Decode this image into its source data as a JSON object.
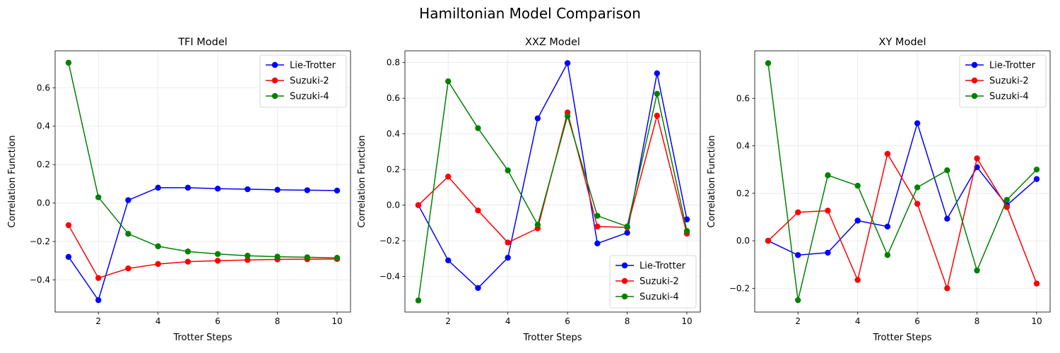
{
  "figure": {
    "suptitle": "Hamiltonian Model Comparison"
  },
  "chart_data": [
    {
      "type": "line",
      "title": "TFI Model",
      "xlabel": "Trotter Steps",
      "ylabel": "Correlation Function",
      "x": [
        1,
        2,
        3,
        4,
        5,
        6,
        7,
        8,
        9,
        10
      ],
      "xlim": [
        0.55,
        10.45
      ],
      "ylim": [
        -0.567,
        0.792
      ],
      "xticks": [
        2,
        4,
        6,
        8,
        10
      ],
      "yticks": [
        -0.4,
        -0.2,
        0.0,
        0.2,
        0.4,
        0.6
      ],
      "ytick_labels": [
        "−0.4",
        "−0.2",
        "0.0",
        "0.2",
        "0.4",
        "0.6"
      ],
      "grid": true,
      "legend_position": "upper right",
      "series": [
        {
          "name": "Lie-Trotter",
          "color": "#0000ff",
          "values": [
            -0.28,
            -0.505,
            0.015,
            0.08,
            0.08,
            0.075,
            0.072,
            0.069,
            0.067,
            0.065
          ]
        },
        {
          "name": "Suzuki-2",
          "color": "#ff0000",
          "values": [
            -0.115,
            -0.39,
            -0.34,
            -0.317,
            -0.305,
            -0.3,
            -0.296,
            -0.293,
            -0.292,
            -0.291
          ]
        },
        {
          "name": "Suzuki-4",
          "color": "#008000",
          "values": [
            0.73,
            0.03,
            -0.16,
            -0.225,
            -0.252,
            -0.265,
            -0.274,
            -0.279,
            -0.282,
            -0.285
          ]
        }
      ]
    },
    {
      "type": "line",
      "title": "XXZ Model",
      "xlabel": "Trotter Steps",
      "ylabel": "Correlation Function",
      "x": [
        1,
        2,
        3,
        4,
        5,
        6,
        7,
        8,
        9,
        10
      ],
      "xlim": [
        0.55,
        10.45
      ],
      "ylim": [
        -0.6,
        0.866
      ],
      "xticks": [
        2,
        4,
        6,
        8,
        10
      ],
      "yticks": [
        -0.4,
        -0.2,
        0.0,
        0.2,
        0.4,
        0.6,
        0.8
      ],
      "ytick_labels": [
        "−0.4",
        "−0.2",
        "0.0",
        "0.2",
        "0.4",
        "0.6",
        "0.8"
      ],
      "grid": true,
      "legend_position": "lower right",
      "series": [
        {
          "name": "Lie-Trotter",
          "color": "#0000ff",
          "values": [
            0.0,
            -0.31,
            -0.465,
            -0.295,
            0.487,
            0.797,
            -0.215,
            -0.155,
            0.74,
            -0.08
          ]
        },
        {
          "name": "Suzuki-2",
          "color": "#ff0000",
          "values": [
            0.0,
            0.16,
            -0.03,
            -0.21,
            -0.13,
            0.52,
            -0.12,
            -0.125,
            0.502,
            -0.16
          ]
        },
        {
          "name": "Suzuki-4",
          "color": "#008000",
          "values": [
            -0.535,
            0.695,
            0.432,
            0.195,
            -0.11,
            0.5,
            -0.06,
            -0.12,
            0.625,
            -0.145
          ]
        }
      ]
    },
    {
      "type": "line",
      "title": "XY Model",
      "xlabel": "Trotter Steps",
      "ylabel": "Correlation Function",
      "x": [
        1,
        2,
        3,
        4,
        5,
        6,
        7,
        8,
        9,
        10
      ],
      "xlim": [
        0.55,
        10.45
      ],
      "ylim": [
        -0.3,
        0.8
      ],
      "xticks": [
        2,
        4,
        6,
        8,
        10
      ],
      "yticks": [
        -0.2,
        0.0,
        0.2,
        0.4,
        0.6
      ],
      "ytick_labels": [
        "−0.2",
        "0.0",
        "0.2",
        "0.4",
        "0.6"
      ],
      "grid": true,
      "legend_position": "upper right",
      "series": [
        {
          "name": "Lie-Trotter",
          "color": "#0000ff",
          "values": [
            0.0,
            -0.06,
            -0.05,
            0.085,
            0.06,
            0.495,
            0.093,
            0.31,
            0.15,
            0.26
          ]
        },
        {
          "name": "Suzuki-2",
          "color": "#ff0000",
          "values": [
            0.0,
            0.12,
            0.127,
            -0.165,
            0.366,
            0.156,
            -0.2,
            0.347,
            0.142,
            -0.18
          ]
        },
        {
          "name": "Suzuki-4",
          "color": "#008000",
          "values": [
            0.748,
            -0.25,
            0.276,
            0.232,
            -0.06,
            0.225,
            0.297,
            -0.125,
            0.172,
            0.3
          ]
        }
      ]
    }
  ]
}
